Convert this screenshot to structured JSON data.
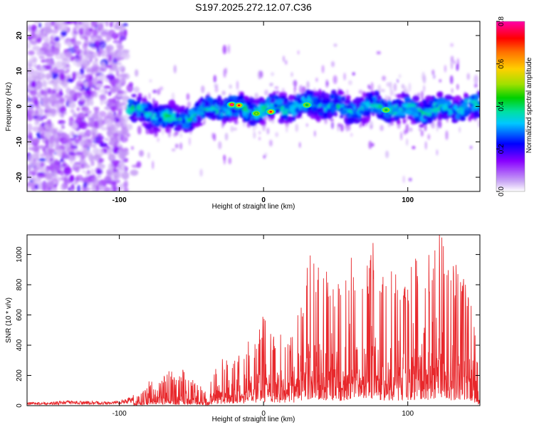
{
  "page_title": "S197.2025.272.12.07.C36",
  "chart_data": [
    {
      "id": "spectrogram",
      "type": "heatmap",
      "title": "S197.2025.272.12.07.C36",
      "xlabel": "Height of straight line (km)",
      "ylabel": "Frequency (Hz)",
      "xlim": [
        -164,
        150
      ],
      "ylim": [
        -24,
        24
      ],
      "xticks": [
        -100,
        0,
        100
      ],
      "xtick_labels": [
        "-100",
        "0",
        "100"
      ],
      "yticks": [
        -20,
        -10,
        0,
        10,
        20
      ],
      "ytick_labels": [
        "-20",
        "-10",
        "0",
        "10",
        "20"
      ],
      "band": {
        "noise_region_x": [
          -164,
          -95
        ],
        "signal_center_hz": [
          {
            "x": -100,
            "y": 0
          },
          {
            "x": -80,
            "y": -2
          },
          {
            "x": -60,
            "y": -4
          },
          {
            "x": -45,
            "y": -2
          },
          {
            "x": -30,
            "y": 0
          },
          {
            "x": -10,
            "y": -1
          },
          {
            "x": 0,
            "y": -1
          },
          {
            "x": 20,
            "y": 0
          },
          {
            "x": 40,
            "y": 1
          },
          {
            "x": 60,
            "y": -1
          },
          {
            "x": 80,
            "y": 0
          },
          {
            "x": 100,
            "y": -1
          },
          {
            "x": 120,
            "y": -1
          },
          {
            "x": 150,
            "y": 0
          }
        ],
        "signal_halfwidth_hz": 3.5,
        "peak_spots": [
          {
            "x": -22,
            "y": 0.5,
            "amp": 0.8
          },
          {
            "x": -17,
            "y": 0.3,
            "amp": 0.7
          },
          {
            "x": 5,
            "y": -1.5,
            "amp": 0.7
          },
          {
            "x": -5,
            "y": -2.0,
            "amp": 0.5
          },
          {
            "x": 30,
            "y": 0.4,
            "amp": 0.45
          },
          {
            "x": 85,
            "y": -1.0,
            "amp": 0.45
          }
        ]
      },
      "colorbar": {
        "label": "Normalized spectral amplitude",
        "range": [
          0.0,
          0.8
        ],
        "ticks": [
          0.0,
          0.2,
          0.4,
          0.6,
          0.8
        ],
        "tick_labels": [
          "0.0",
          "0.2",
          "0.4",
          "0.6",
          "0.8"
        ],
        "colors": [
          "#ffffff",
          "#c9a6f5",
          "#8800ff",
          "#0000ff",
          "#00c8ff",
          "#00e0a0",
          "#00d000",
          "#a0e000",
          "#ffd000",
          "#ff7000",
          "#ff0000",
          "#ff00aa"
        ]
      }
    },
    {
      "id": "snr",
      "type": "line",
      "xlabel": "Height of straight line (km)",
      "ylabel": "SNR (10 * v/v)",
      "xlim": [
        -164,
        150
      ],
      "ylim": [
        0,
        1130
      ],
      "xticks": [
        -100,
        0,
        100
      ],
      "xtick_labels": [
        "-100",
        "0",
        "100"
      ],
      "yticks": [
        0,
        200,
        400,
        600,
        800,
        1000
      ],
      "ytick_labels": [
        "0",
        "200",
        "400",
        "600",
        "800",
        "1000"
      ],
      "line_color": "#e8282c",
      "series": [
        {
          "name": "SNR",
          "points": [
            [
              -164,
              18
            ],
            [
              -150,
              20
            ],
            [
              -135,
              28
            ],
            [
              -120,
              25
            ],
            [
              -105,
              22
            ],
            [
              -95,
              40
            ],
            [
              -85,
              80
            ],
            [
              -80,
              150
            ],
            [
              -75,
              200
            ],
            [
              -70,
              180
            ],
            [
              -65,
              230
            ],
            [
              -60,
              170
            ],
            [
              -55,
              240
            ],
            [
              -50,
              170
            ],
            [
              -45,
              130
            ],
            [
              -40,
              100
            ],
            [
              -35,
              220
            ],
            [
              -30,
              300
            ],
            [
              -25,
              290
            ],
            [
              -20,
              350
            ],
            [
              -15,
              340
            ],
            [
              -10,
              430
            ],
            [
              -5,
              380
            ],
            [
              0,
              630
            ],
            [
              5,
              460
            ],
            [
              10,
              470
            ],
            [
              15,
              490
            ],
            [
              20,
              470
            ],
            [
              25,
              620
            ],
            [
              30,
              880
            ],
            [
              35,
              1060
            ],
            [
              40,
              780
            ],
            [
              45,
              900
            ],
            [
              50,
              810
            ],
            [
              55,
              760
            ],
            [
              60,
              1010
            ],
            [
              65,
              840
            ],
            [
              70,
              860
            ],
            [
              75,
              1050
            ],
            [
              80,
              950
            ],
            [
              85,
              780
            ],
            [
              90,
              890
            ],
            [
              95,
              830
            ],
            [
              100,
              820
            ],
            [
              105,
              930
            ],
            [
              110,
              990
            ],
            [
              115,
              950
            ],
            [
              120,
              1130
            ],
            [
              125,
              1060
            ],
            [
              130,
              880
            ],
            [
              135,
              900
            ],
            [
              140,
              850
            ],
            [
              145,
              640
            ],
            [
              150,
              160
            ]
          ]
        }
      ]
    }
  ]
}
